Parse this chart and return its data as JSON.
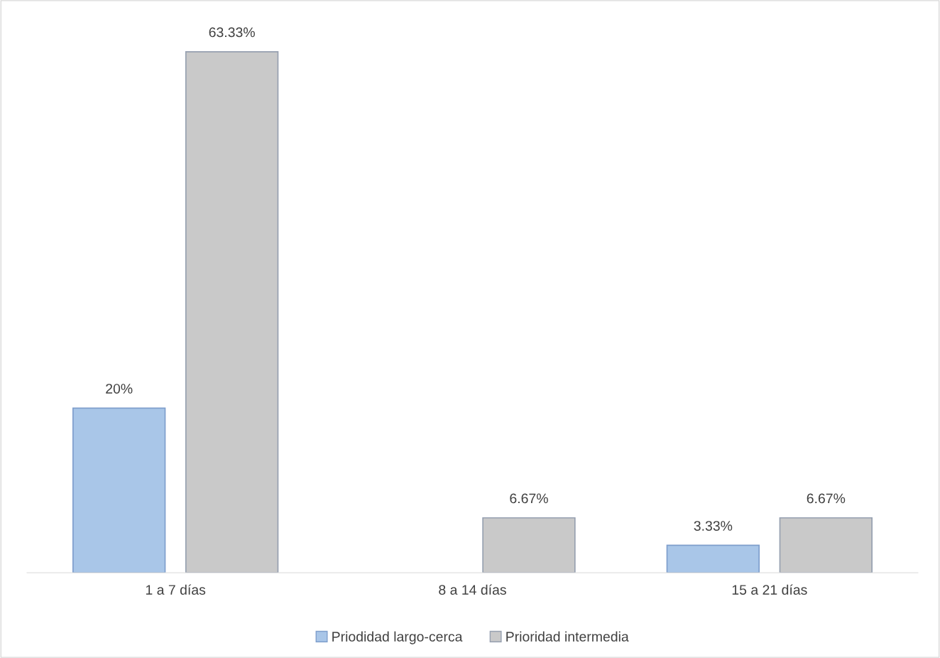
{
  "chart_data": {
    "type": "bar",
    "categories": [
      "1 a 7 días",
      "8 a 14 días",
      "15 a 21 días"
    ],
    "series": [
      {
        "name": "Priodidad largo-cerca",
        "color": "#a9c6e8",
        "values": [
          20,
          null,
          3.33
        ],
        "value_labels": [
          "20%",
          null,
          "3.33%"
        ]
      },
      {
        "name": "Prioridad intermedia",
        "color": "#c9c9c9",
        "values": [
          63.33,
          6.67,
          6.67
        ],
        "value_labels": [
          "63.33%",
          "6.67%",
          "6.67%"
        ]
      }
    ],
    "legend": "bottom",
    "grid": false
  }
}
